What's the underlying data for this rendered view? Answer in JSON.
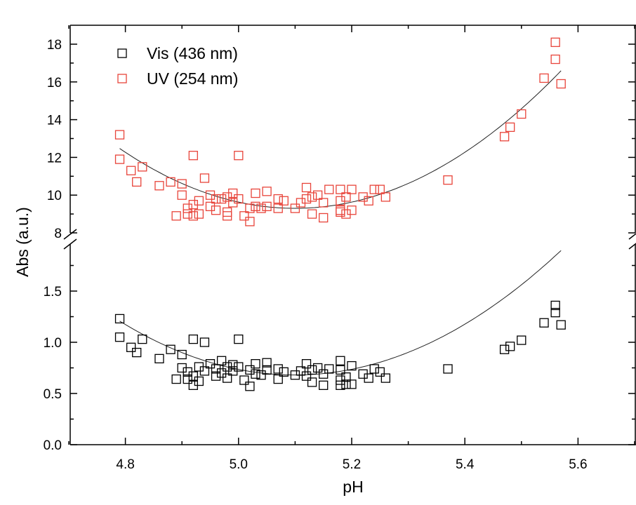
{
  "chart_data": {
    "type": "scatter",
    "xlabel": "pH",
    "ylabel": "Abs (a.u.)",
    "xlim": [
      4.7,
      5.7
    ],
    "x_ticks": [
      "4.8",
      "5.0",
      "5.2",
      "5.4",
      "5.6"
    ],
    "axis_break": true,
    "lower_panel": {
      "ylim": [
        0.0,
        2.0
      ],
      "y_ticks": [
        "0.0",
        "0.5",
        "1.0",
        "1.5"
      ]
    },
    "upper_panel": {
      "ylim": [
        7.9,
        19.0
      ],
      "y_ticks": [
        "8",
        "10",
        "12",
        "14",
        "16",
        "18"
      ]
    },
    "legend_position": "top-left",
    "grid": false,
    "series": [
      {
        "name": "Vis (436 nm)",
        "panel": "lower",
        "marker": "open-square",
        "color": "#000000",
        "points": [
          [
            4.79,
            1.23
          ],
          [
            4.79,
            1.05
          ],
          [
            4.81,
            0.95
          ],
          [
            4.82,
            0.9
          ],
          [
            4.83,
            1.03
          ],
          [
            4.86,
            0.84
          ],
          [
            4.88,
            0.93
          ],
          [
            4.89,
            0.64
          ],
          [
            4.9,
            0.88
          ],
          [
            4.9,
            0.75
          ],
          [
            4.91,
            0.71
          ],
          [
            4.91,
            0.64
          ],
          [
            4.92,
            1.03
          ],
          [
            4.92,
            0.67
          ],
          [
            4.92,
            0.58
          ],
          [
            4.93,
            0.76
          ],
          [
            4.93,
            0.62
          ],
          [
            4.94,
            1.0
          ],
          [
            4.94,
            0.72
          ],
          [
            4.95,
            0.79
          ],
          [
            4.96,
            0.74
          ],
          [
            4.96,
            0.67
          ],
          [
            4.97,
            0.82
          ],
          [
            4.97,
            0.7
          ],
          [
            4.98,
            0.76
          ],
          [
            4.98,
            0.65
          ],
          [
            4.99,
            0.78
          ],
          [
            4.99,
            0.72
          ],
          [
            5.0,
            1.03
          ],
          [
            5.0,
            0.76
          ],
          [
            5.01,
            0.63
          ],
          [
            5.02,
            0.73
          ],
          [
            5.02,
            0.57
          ],
          [
            5.03,
            0.79
          ],
          [
            5.03,
            0.69
          ],
          [
            5.04,
            0.68
          ],
          [
            5.05,
            0.8
          ],
          [
            5.05,
            0.73
          ],
          [
            5.07,
            0.74
          ],
          [
            5.07,
            0.64
          ],
          [
            5.08,
            0.71
          ],
          [
            5.1,
            0.68
          ],
          [
            5.11,
            0.72
          ],
          [
            5.12,
            0.79
          ],
          [
            5.12,
            0.67
          ],
          [
            5.13,
            0.73
          ],
          [
            5.13,
            0.61
          ],
          [
            5.14,
            0.75
          ],
          [
            5.15,
            0.69
          ],
          [
            5.15,
            0.58
          ],
          [
            5.16,
            0.74
          ],
          [
            5.18,
            0.82
          ],
          [
            5.18,
            0.73
          ],
          [
            5.18,
            0.63
          ],
          [
            5.18,
            0.58
          ],
          [
            5.19,
            0.66
          ],
          [
            5.19,
            0.59
          ],
          [
            5.2,
            0.77
          ],
          [
            5.2,
            0.59
          ],
          [
            5.22,
            0.69
          ],
          [
            5.23,
            0.65
          ],
          [
            5.24,
            0.74
          ],
          [
            5.25,
            0.71
          ],
          [
            5.26,
            0.65
          ],
          [
            5.37,
            0.74
          ],
          [
            5.47,
            0.93
          ],
          [
            5.48,
            0.96
          ],
          [
            5.5,
            1.02
          ],
          [
            5.54,
            1.19
          ],
          [
            5.56,
            1.36
          ],
          [
            5.56,
            1.29
          ],
          [
            5.57,
            1.17
          ]
        ]
      },
      {
        "name": "UV (254 nm)",
        "panel": "upper",
        "marker": "open-square",
        "color": "#e8443a",
        "points": [
          [
            4.79,
            13.2
          ],
          [
            4.79,
            11.9
          ],
          [
            4.81,
            11.3
          ],
          [
            4.82,
            10.7
          ],
          [
            4.83,
            11.5
          ],
          [
            4.86,
            10.5
          ],
          [
            4.88,
            10.7
          ],
          [
            4.89,
            8.9
          ],
          [
            4.9,
            10.6
          ],
          [
            4.9,
            10.0
          ],
          [
            4.91,
            9.0
          ],
          [
            4.91,
            9.3
          ],
          [
            4.92,
            12.1
          ],
          [
            4.92,
            9.5
          ],
          [
            4.92,
            8.9
          ],
          [
            4.93,
            9.7
          ],
          [
            4.93,
            9.0
          ],
          [
            4.94,
            10.9
          ],
          [
            4.95,
            10.0
          ],
          [
            4.95,
            9.4
          ],
          [
            4.96,
            9.8
          ],
          [
            4.96,
            9.2
          ],
          [
            4.97,
            9.8
          ],
          [
            4.98,
            9.9
          ],
          [
            4.98,
            9.1
          ],
          [
            4.98,
            8.9
          ],
          [
            4.99,
            10.1
          ],
          [
            4.99,
            9.6
          ],
          [
            5.0,
            12.1
          ],
          [
            5.0,
            9.8
          ],
          [
            5.01,
            8.9
          ],
          [
            5.02,
            9.3
          ],
          [
            5.02,
            8.6
          ],
          [
            5.03,
            10.1
          ],
          [
            5.03,
            9.4
          ],
          [
            5.04,
            9.3
          ],
          [
            5.05,
            10.2
          ],
          [
            5.05,
            9.4
          ],
          [
            5.07,
            9.8
          ],
          [
            5.07,
            9.3
          ],
          [
            5.08,
            9.7
          ],
          [
            5.1,
            9.3
          ],
          [
            5.11,
            9.6
          ],
          [
            5.12,
            10.4
          ],
          [
            5.12,
            9.8
          ],
          [
            5.13,
            9.9
          ],
          [
            5.13,
            9.0
          ],
          [
            5.14,
            10.0
          ],
          [
            5.15,
            9.6
          ],
          [
            5.15,
            8.8
          ],
          [
            5.16,
            10.3
          ],
          [
            5.18,
            10.3
          ],
          [
            5.18,
            9.7
          ],
          [
            5.18,
            9.2
          ],
          [
            5.18,
            9.1
          ],
          [
            5.19,
            9.9
          ],
          [
            5.19,
            9.0
          ],
          [
            5.2,
            10.3
          ],
          [
            5.2,
            9.2
          ],
          [
            5.22,
            9.9
          ],
          [
            5.23,
            9.7
          ],
          [
            5.24,
            10.3
          ],
          [
            5.25,
            10.3
          ],
          [
            5.26,
            9.9
          ],
          [
            5.37,
            10.8
          ],
          [
            5.47,
            13.1
          ],
          [
            5.48,
            13.6
          ],
          [
            5.5,
            14.3
          ],
          [
            5.54,
            16.2
          ],
          [
            5.56,
            18.1
          ],
          [
            5.56,
            17.2
          ],
          [
            5.57,
            15.9
          ]
        ]
      }
    ],
    "fits": [
      {
        "panel": "lower",
        "type": "quadratic",
        "x_range": [
          4.79,
          5.57
        ],
        "coeffs": [
          0.6809,
          0.0056,
          5.4889
        ],
        "x_center": 5.1
      },
      {
        "panel": "upper",
        "type": "quadratic",
        "x_range": [
          4.79,
          5.57
        ],
        "coeffs": [
          9.3,
          0.0,
          33.0
        ],
        "x_center": 5.1
      }
    ]
  }
}
